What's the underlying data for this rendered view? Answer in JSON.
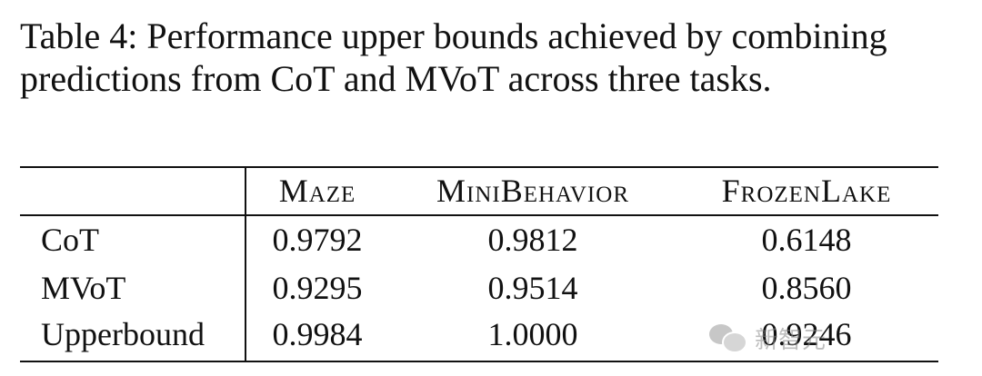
{
  "caption": "Table 4: Performance upper bounds achieved by combining predictions from CoT and MVoT across three tasks.",
  "table": {
    "columns": [
      "",
      "Maze",
      "MiniBehavior",
      "FrozenLake"
    ],
    "rows": [
      {
        "label": "CoT",
        "values": [
          "0.9792",
          "0.9812",
          "0.6148"
        ]
      },
      {
        "label": "MVoT",
        "values": [
          "0.9295",
          "0.9514",
          "0.8560"
        ]
      },
      {
        "label": "Upperbound",
        "values": [
          "0.9984",
          "1.0000",
          "0.9246"
        ]
      }
    ]
  },
  "watermark": {
    "text": "新智元",
    "icon": "wechat-icon"
  }
}
